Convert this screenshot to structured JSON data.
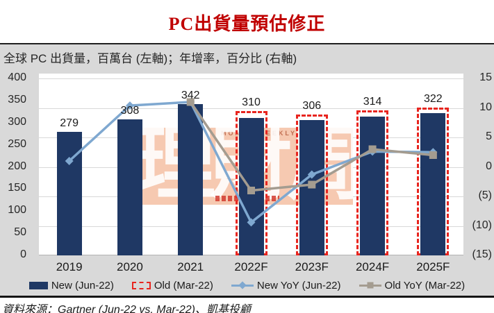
{
  "page": {
    "title": "PC出貨量預估修正",
    "subtitle": "全球 PC 出貨量，百萬台 (左軸)；年增率，百分比 (右軸)",
    "source": "資料來源：Gartner (Jun-22 vs. Mar-22)、凱基投顧"
  },
  "watermark": {
    "brand_text": "理財周刊",
    "brand_subtext": "MONEY WEEKLY"
  },
  "colors": {
    "title_red": "#c00000",
    "bar_navy": "#1f3864",
    "dash_red": "#e8251f",
    "new_yoy_blue": "#7fa8d0",
    "old_yoy_gray": "#a49c90",
    "panel_gray": "#d9d9d9",
    "gridline": "#d8d8d8",
    "watermark_salmon": "#f6c9b1"
  },
  "legend": [
    {
      "label": "New (Jun-22)",
      "swatch": "bar-solid"
    },
    {
      "label": "Old (Mar-22)",
      "swatch": "bar-dashed"
    },
    {
      "label": "New YoY (Jun-22)",
      "swatch": "line-diamond"
    },
    {
      "label": "Old YoY (Mar-22)",
      "swatch": "line-square"
    }
  ],
  "chart_data": {
    "type": "combo (bar + line, dual axis)",
    "categories": [
      "2019",
      "2020",
      "2021",
      "2022F",
      "2023F",
      "2024F",
      "2025F"
    ],
    "series": [
      {
        "name": "New (Jun-22)",
        "type": "bar",
        "axis": "left",
        "values": [
          279,
          308,
          342,
          310,
          306,
          314,
          322
        ],
        "data_labels_shown": true
      },
      {
        "name": "Old (Mar-22)",
        "type": "bar-dashed-outline",
        "axis": "left",
        "values": [
          null,
          null,
          null,
          327,
          318,
          328,
          334
        ],
        "data_labels_shown": false
      },
      {
        "name": "New YoY (Jun-22)",
        "type": "line",
        "marker": "diamond",
        "axis": "right",
        "values": [
          1.0,
          10.4,
          11.0,
          -9.4,
          -1.3,
          2.6,
          2.5
        ]
      },
      {
        "name": "Old YoY (Mar-22)",
        "type": "line",
        "marker": "square",
        "axis": "right",
        "values": [
          null,
          null,
          11.0,
          -4.0,
          -3.0,
          3.0,
          2.0
        ]
      }
    ],
    "left_axis": {
      "range": [
        0,
        400
      ],
      "ticks": [
        0,
        50,
        100,
        150,
        200,
        250,
        300,
        350,
        400
      ]
    },
    "right_axis": {
      "range": [
        -15,
        15
      ],
      "ticks": [
        {
          "v": 15,
          "label": "15"
        },
        {
          "v": 10,
          "label": "10"
        },
        {
          "v": 5,
          "label": "5"
        },
        {
          "v": 0,
          "label": "0"
        },
        {
          "v": -5,
          "label": "(5)"
        },
        {
          "v": -10,
          "label": "(10)"
        },
        {
          "v": -15,
          "label": "(15)"
        }
      ]
    },
    "grid": true,
    "legend_position": "bottom"
  }
}
